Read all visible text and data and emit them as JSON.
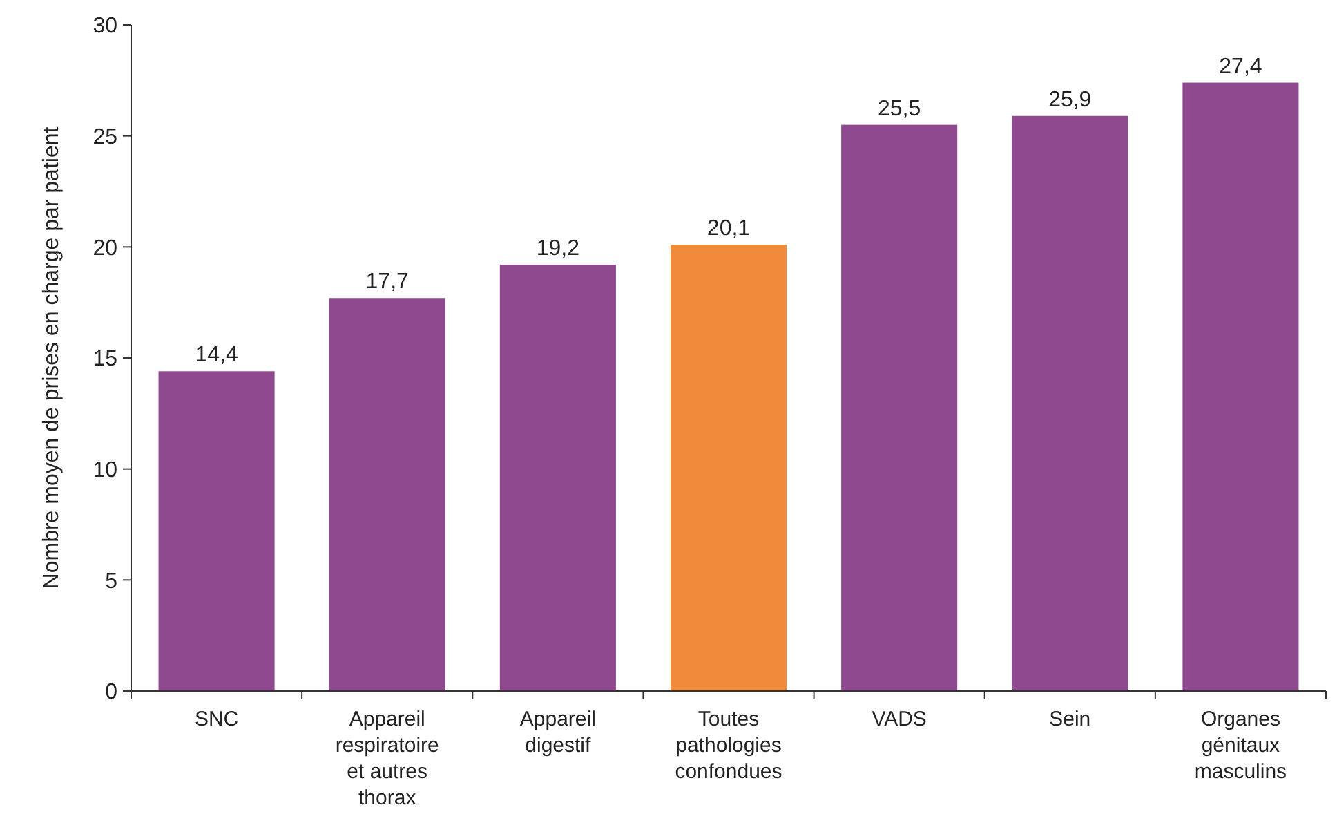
{
  "chart_data": {
    "type": "bar",
    "ylabel": "Nombre moyen de prises en charge par patient",
    "categories": [
      "SNC",
      "Appareil respiratoire et autres thorax",
      "Appareil digestif",
      "Toutes pathologies confondues",
      "VADS",
      "Sein",
      "Organes génitaux masculins"
    ],
    "values": [
      14.4,
      17.7,
      19.2,
      20.1,
      25.5,
      25.9,
      27.4
    ],
    "colors": [
      "#8f4a8f",
      "#8f4a8f",
      "#8f4a8f",
      "#ef8b3a",
      "#8f4a8f",
      "#8f4a8f",
      "#8f4a8f"
    ],
    "value_labels": [
      "14,4",
      "17,7",
      "19,2",
      "20,1",
      "25,5",
      "25,9",
      "27,4"
    ],
    "ylim": [
      0,
      30
    ],
    "yticks": [
      0,
      5,
      10,
      15,
      20,
      25,
      30
    ]
  }
}
